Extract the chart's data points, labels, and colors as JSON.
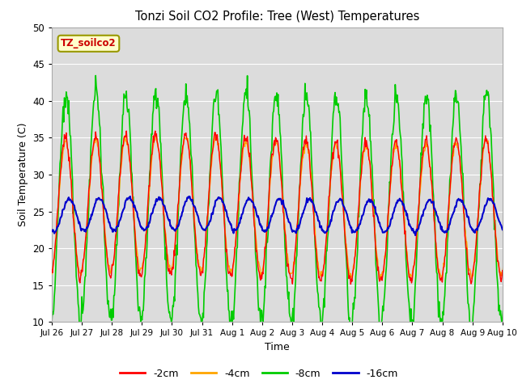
{
  "title": "Tonzi Soil CO2 Profile: Tree (West) Temperatures",
  "xlabel": "Time",
  "ylabel": "Soil Temperature (C)",
  "ylim": [
    10,
    50
  ],
  "legend_label": "TZ_soilco2",
  "series_labels": [
    "-2cm",
    "-4cm",
    "-8cm",
    "-16cm"
  ],
  "series_colors": [
    "#ff0000",
    "#ffa500",
    "#00cc00",
    "#0000cc"
  ],
  "background_color": "#dcdcdc",
  "x_tick_labels": [
    "Jul 26",
    "Jul 27",
    "Jul 28",
    "Jul 29",
    "Jul 30",
    "Jul 31",
    "Aug 1",
    "Aug 2",
    "Aug 3",
    "Aug 4",
    "Aug 5",
    "Aug 6",
    "Aug 7",
    "Aug 8",
    "Aug 9",
    "Aug 10"
  ],
  "n_days": 16,
  "points_per_day": 48,
  "amp_2cm": 9.5,
  "amp_4cm": 9.0,
  "amp_8cm": 16.0,
  "amp_16cm": 2.2,
  "base_temp": 24.5,
  "trough_2cm": 16.5,
  "trough_4cm": 16.5,
  "trough_8cm": 14.5,
  "trough_16cm": 22.5
}
